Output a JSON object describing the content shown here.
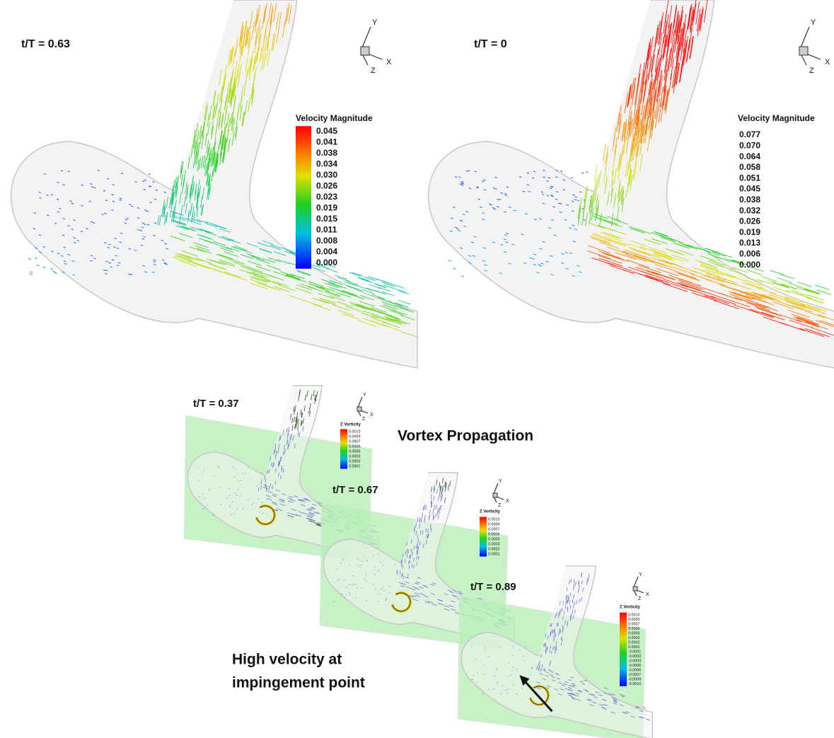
{
  "panels": [
    {
      "time_label": "t/T = 0.63",
      "triad": {
        "y": "Y",
        "z": "Z",
        "x": "X"
      },
      "legend": {
        "title": "Velocity Magnitude",
        "values": [
          "0.045",
          "0.041",
          "0.038",
          "0.034",
          "0.030",
          "0.026",
          "0.023",
          "0.019",
          "0.015",
          "0.011",
          "0.008",
          "0.004",
          "0.000"
        ]
      }
    },
    {
      "time_label": "t/T = 0",
      "triad": {
        "y": "Y",
        "z": "Z",
        "x": "X"
      },
      "legend": {
        "title": "Velocity Magnitude",
        "values": [
          "0.077",
          "0.070",
          "0.064",
          "0.058",
          "0.051",
          "0.045",
          "0.038",
          "0.032",
          "0.026",
          "0.019",
          "0.013",
          "0.006",
          "0.000"
        ]
      }
    },
    {
      "time_label": "t/T = 0.37",
      "triad": {
        "y": "Y",
        "z": "Z",
        "x": "X"
      },
      "legend": {
        "title": "Z Vorticity",
        "values": [
          "0.0010",
          "0.0009",
          "0.0007",
          "0.0006",
          "0.0005",
          "0.0003",
          "0.0002",
          "0.0001"
        ]
      }
    },
    {
      "time_label": "t/T = 0.67",
      "triad": {
        "y": "Y",
        "z": "Z",
        "x": "X"
      },
      "legend": {
        "title": "Z Vorticity",
        "values": [
          "0.0010",
          "0.0009",
          "0.0007",
          "0.0006",
          "0.0005",
          "0.0003",
          "0.0002",
          "0.0001"
        ]
      }
    },
    {
      "time_label": "t/T = 0.89",
      "triad": {
        "y": "Y",
        "z": "Z",
        "x": "X"
      },
      "legend": {
        "title": "Z Vorticity",
        "values": [
          "0.0010",
          "0.0009",
          "0.0007",
          "0.0006",
          "0.0005",
          "0.0003",
          "0.0002",
          "0.0001",
          "-0.0001",
          "-0.0002",
          "-0.0003",
          "-0.0005",
          "-0.0006",
          "-0.0007",
          "-0.0009",
          "-0.0010"
        ]
      }
    }
  ],
  "annotations": {
    "vortex": "Vortex Propagation",
    "impingement": [
      "High velocity at",
      "impingement point"
    ]
  }
}
